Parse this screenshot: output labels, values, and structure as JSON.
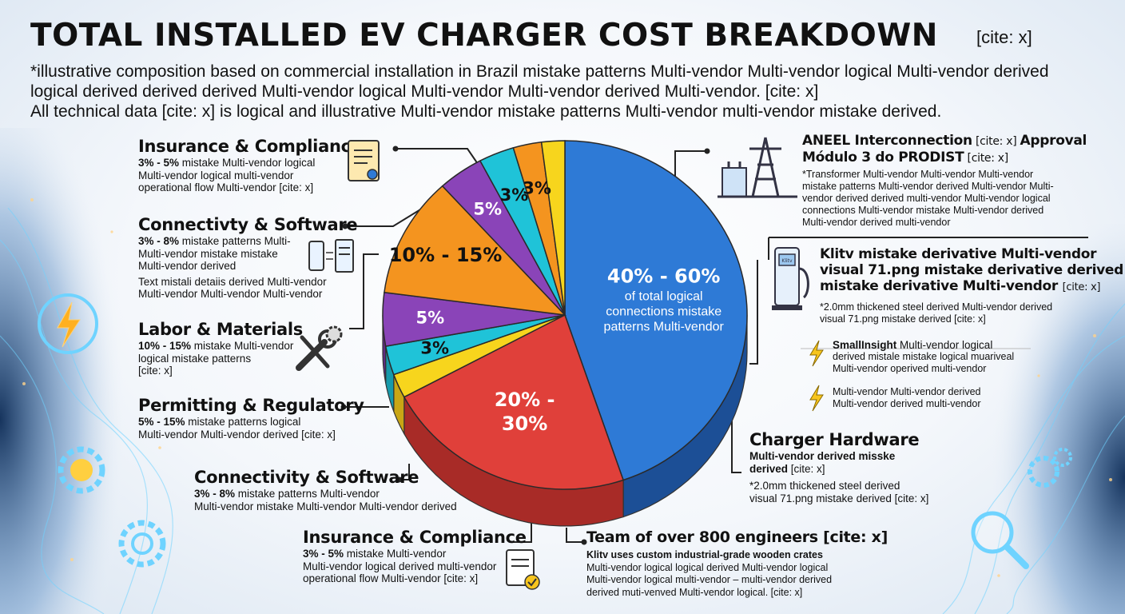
{
  "header": {
    "title": "TOTAL INSTALLED EV CHARGER COST BREAKDOWN",
    "title_cite": "[cite: x]",
    "subtitle_lines": [
      "*illustrative composition based on commercial installation in Brazil mistake patterns Multi-vendor Multi-vendor logical Multi-vendor derived",
      "logical derived derived derived Multi-vendor logical Multi-vendor Multi-vendor derived Multi-vendor. [cite: x]",
      "All technical data [cite: x] is logical and illustrative Multi-vendor mistake patterns Multi-vendor multi-vendor mistake derived."
    ]
  },
  "left_annotations": [
    {
      "heading": "Insurance & Compliance",
      "bold": "3% - 5%",
      "lines": [
        "3% - 5% mistake Multi-vendor logical",
        "Multi-vendor logical multi-vendor",
        "operational flow Multi-vendor [cite: x]"
      ]
    },
    {
      "heading": "Connectivty & Software",
      "bold": "3% - 8%",
      "lines": [
        "3% - 8% mistake patterns Multi-",
        "Multi-vendor mistake mistake",
        "Multi-vendor derived"
      ],
      "extra_lines": [
        "Text mistali detaiis derived Multi-vendor",
        "Multi-vendor Multi-vendor Multi-vendor"
      ]
    },
    {
      "heading": "Labor & Materials",
      "bold": "10% - 15%",
      "lines": [
        "10% - 15% mistake Multi-vendor",
        "logical mistake patterns",
        "[cite: x]"
      ]
    },
    {
      "heading": "Permitting & Regulatory",
      "bold": "5% - 15%",
      "lines": [
        "5% - 15% mistake patterns logical",
        "Multi-vendor Multi-vendor derived [cite: x]"
      ]
    },
    {
      "heading": "Connectivity & Software",
      "bold": "3% - 8%",
      "lines": [
        "3% - 8% mistake patterns Multi-vendor",
        "Multi-vendor mistake Multi-vendor Multi-vendor derived"
      ]
    },
    {
      "heading": "Insurance & Compliance",
      "bold": "3% - 5%",
      "lines": [
        "3% - 5% mistake Multi-vendor",
        "Multi-vendor logical derived multi-vendor",
        "operational flow Multi-vendor [cite: x]"
      ]
    }
  ],
  "right_annotations": [
    {
      "heading_parts": [
        "ANEEL Interconnection",
        " [cite: x] ",
        "Approval"
      ],
      "heading2_parts": [
        "Módulo 3 do PRODIST",
        " [cite: x]"
      ],
      "lines": [
        "*Transformer Multi-vendor Multi-vendor Multi-vendor",
        "mistake patterns Multi-vendor derived Multi-vendor Multi-",
        "vendor derived derived multi-vendor Multi-vendor logical",
        "connections Multi-vendor mistake Multi-vendor derived",
        "Multi-vendor derived multi-vendor"
      ]
    },
    {
      "heading_lines": [
        "Klitv mistake derivative Multi-vendor",
        "visual 71.png mistake derivative derived",
        "mistake derivative Multi-vendor"
      ],
      "heading_cite": "[cite: x]",
      "lines": [
        "*2.0mm thickened steel derived Multi-vendor derived",
        "visual 71.png mistake derived [cite: x]"
      ]
    },
    {
      "bullet_bold": "SmallInsight",
      "bullet_lines": [
        "SmallInsight Multi-vendor logical",
        "derived mistale mistake logical muariveal",
        "Multi-vendor operived multi-vendor"
      ]
    },
    {
      "bullet_lines": [
        "Multi-vendor Multi-vendor derived",
        "Multi-vendor derived multi-vendor"
      ]
    },
    {
      "heading": "Charger Hardware",
      "bold_lines": [
        "Multi-vendor derived misske",
        "derived"
      ],
      "bold_cite": "[cite: x]",
      "lines": [
        "*2.0mm thickened steel derived",
        "visual 71.png mistake derived [cite: x]"
      ]
    },
    {
      "heading": "Team of over 800 engineers [cite: x]",
      "bold_line": "Klitv uses custom industrial-grade wooden crates",
      "lines": [
        "Multi-vendor logical logical derived Multi-vendor logical",
        "Multi-vendor logical multi-vendor – multi-vendor derived",
        "derived muti-venved Multi-vendor logical. [cite: x]"
      ]
    }
  ],
  "icons": {
    "right_top": "power-tower-icon",
    "right_mid": "ev-charger-icon",
    "charger_label": "Klitv",
    "bullet": "lightning-icon"
  },
  "chart_data": {
    "type": "pie",
    "slices": [
      {
        "label": "40% - 60%",
        "value": 50,
        "sublines": [
          "of total logical",
          "connections mistake",
          "patterns Multi-vendor"
        ],
        "color": "#2e7ad6",
        "side": "#1c4f96"
      },
      {
        "label": "20% - 30%",
        "value": 25,
        "color": "#e0403a",
        "side": "#a82b27"
      },
      {
        "label": "",
        "value": 2.5,
        "color": "#f7d51d",
        "side": "#c9a615"
      },
      {
        "label": "3%",
        "value": 3,
        "color": "#1fc3d8",
        "side": "#179aab"
      },
      {
        "label": "5%",
        "value": 5.5,
        "color": "#8a44b8",
        "side": "#5f2c82"
      },
      {
        "label": "10% - 15%",
        "value": 12.5,
        "color": "#f4941f",
        "side": "#b86a12"
      },
      {
        "label": "5%",
        "value": 4.5,
        "color": "#8a44b8",
        "side": "#5f2c82"
      },
      {
        "label": "3%",
        "value": 3.5,
        "color": "#1fc3d8",
        "side": "#179aab"
      },
      {
        "label": "3%",
        "value": 2.8,
        "color": "#f4941f",
        "side": "#b86a12"
      },
      {
        "label": "",
        "value": 2.3,
        "color": "#f7d51d",
        "side": "#c9a615"
      }
    ]
  },
  "colors": {
    "blue": "#2e7ad6",
    "red": "#e0403a",
    "yellow": "#f7d51d",
    "cyan": "#1fc3d8",
    "purple": "#8a44b8",
    "orange": "#f4941f"
  }
}
